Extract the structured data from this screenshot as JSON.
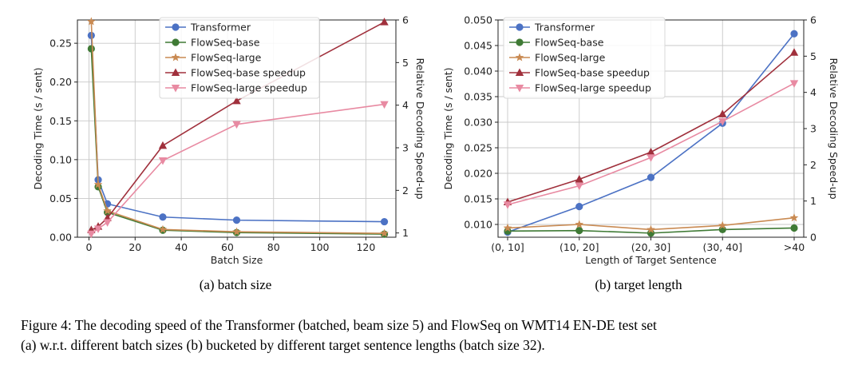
{
  "figure": {
    "subcaption_a": "(a) batch size",
    "subcaption_b": "(b) target length",
    "caption_line1": "Figure 4: The decoding speed of the Transformer (batched, beam size 5) and FlowSeq on WMT14 EN-DE test set",
    "caption_line2": "(a) w.r.t. different batch sizes (b) bucketed by different target sentence lengths (batch size 32)."
  },
  "colors": {
    "transformer": "#4c72c4",
    "flowseq_base": "#3f7a35",
    "flowseq_large": "#c98a52",
    "base_speedup": "#a0303c",
    "large_speedup": "#e88aa2"
  },
  "chart_data": [
    {
      "type": "line",
      "xlabel": "Batch Size",
      "ylabel": "Decoding Time (s / sent)",
      "ylabel_right": "Relative Decoding Speed-up",
      "xlim": [
        -5,
        133
      ],
      "ylim": [
        0,
        0.28
      ],
      "ylim_right": [
        0.9,
        6.0
      ],
      "xticks": [
        "0",
        "20",
        "40",
        "60",
        "80",
        "100",
        "120"
      ],
      "xtick_values": [
        0,
        20,
        40,
        60,
        80,
        100,
        120
      ],
      "yticks": [
        "0.00",
        "0.05",
        "0.10",
        "0.15",
        "0.20",
        "0.25"
      ],
      "ytick_values": [
        0,
        0.05,
        0.1,
        0.15,
        0.2,
        0.25
      ],
      "yticks_right": [
        "1",
        "2",
        "3",
        "4",
        "5",
        "6"
      ],
      "ytick_values_right": [
        1,
        2,
        3,
        4,
        5,
        6
      ],
      "grid": true,
      "legend_position": "top-center",
      "x": [
        1,
        4,
        8,
        32,
        64,
        128
      ],
      "series": [
        {
          "name": "Transformer",
          "axis": "left",
          "marker": "circle",
          "color_key": "transformer",
          "values": [
            0.26,
            0.074,
            0.043,
            0.026,
            0.022,
            0.02
          ]
        },
        {
          "name": "FlowSeq-base",
          "axis": "left",
          "marker": "circle",
          "color_key": "flowseq_base",
          "values": [
            0.243,
            0.065,
            0.032,
            0.009,
            0.006,
            0.004
          ]
        },
        {
          "name": "FlowSeq-large",
          "axis": "left",
          "marker": "star",
          "color_key": "flowseq_large",
          "values": [
            0.278,
            0.068,
            0.034,
            0.01,
            0.007,
            0.005
          ]
        },
        {
          "name": "FlowSeq-base speedup",
          "axis": "right",
          "marker": "triangle-up",
          "color_key": "base_speedup",
          "values": [
            1.07,
            1.15,
            1.35,
            3.05,
            4.1,
            5.95
          ]
        },
        {
          "name": "FlowSeq-large speedup",
          "axis": "right",
          "marker": "triangle-down",
          "color_key": "large_speedup",
          "values": [
            0.98,
            1.1,
            1.25,
            2.7,
            3.55,
            4.02
          ]
        }
      ]
    },
    {
      "type": "line",
      "xlabel": "Length of Target Sentence",
      "ylabel": "Decoding Time (s / sent)",
      "ylabel_right": "Relative Decoding Speed-up",
      "categories": [
        "(0, 10]",
        "(10, 20]",
        "(20, 30]",
        "(30, 40]",
        ">40"
      ],
      "ylim": [
        0.0075,
        0.05
      ],
      "ylim_right": [
        0,
        6.0
      ],
      "yticks": [
        "0.010",
        "0.015",
        "0.020",
        "0.025",
        "0.030",
        "0.035",
        "0.040",
        "0.045",
        "0.050"
      ],
      "ytick_values": [
        0.01,
        0.015,
        0.02,
        0.025,
        0.03,
        0.035,
        0.04,
        0.045,
        0.05
      ],
      "yticks_right": [
        "0",
        "1",
        "2",
        "3",
        "4",
        "5",
        "6"
      ],
      "ytick_values_right": [
        0,
        1,
        2,
        3,
        4,
        5,
        6
      ],
      "grid": true,
      "legend_position": "top-left",
      "series": [
        {
          "name": "Transformer",
          "axis": "left",
          "marker": "circle",
          "color_key": "transformer",
          "values": [
            0.0085,
            0.0135,
            0.0192,
            0.0298,
            0.0473
          ]
        },
        {
          "name": "FlowSeq-base",
          "axis": "left",
          "marker": "circle",
          "color_key": "flowseq_base",
          "values": [
            0.0087,
            0.0088,
            0.0083,
            0.009,
            0.0093
          ]
        },
        {
          "name": "FlowSeq-large",
          "axis": "left",
          "marker": "star",
          "color_key": "flowseq_large",
          "values": [
            0.0093,
            0.01,
            0.009,
            0.0098,
            0.0113
          ]
        },
        {
          "name": "FlowSeq-base speedup",
          "axis": "right",
          "marker": "triangle-up",
          "color_key": "base_speedup",
          "values": [
            0.97,
            1.6,
            2.35,
            3.4,
            5.1
          ]
        },
        {
          "name": "FlowSeq-large speedup",
          "axis": "right",
          "marker": "triangle-down",
          "color_key": "large_speedup",
          "values": [
            0.9,
            1.42,
            2.2,
            3.2,
            4.25
          ]
        }
      ]
    }
  ]
}
